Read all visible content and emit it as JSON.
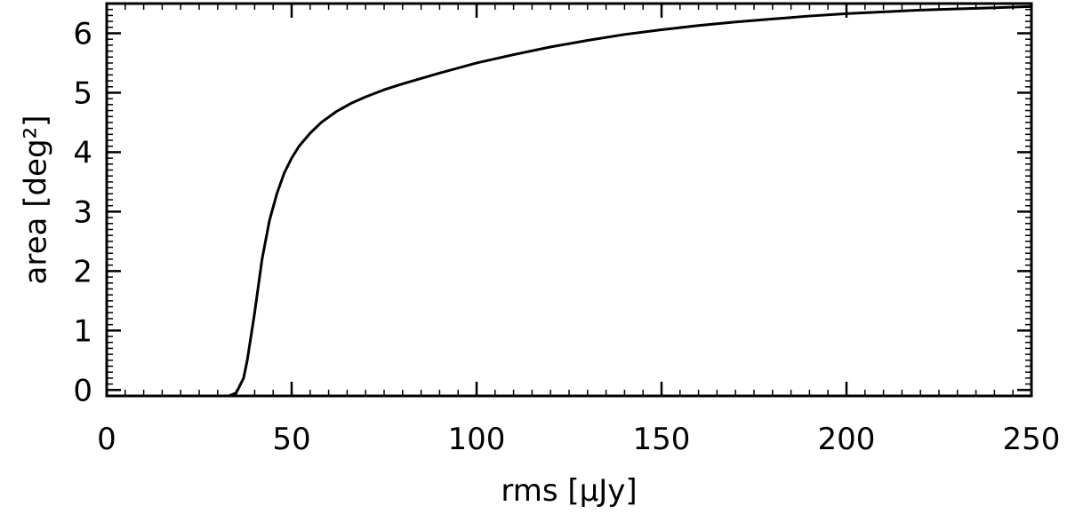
{
  "chart_data": {
    "type": "line",
    "title": "",
    "xlabel": "rms [μJy]",
    "ylabel": "area [deg²]",
    "xlim": [
      0,
      250
    ],
    "ylim": [
      -0.1,
      6.5
    ],
    "xticks": [
      0,
      50,
      100,
      150,
      200,
      250
    ],
    "xtick_labels": [
      "0",
      "50",
      "100",
      "150",
      "200",
      "250"
    ],
    "yticks": [
      0,
      1,
      2,
      3,
      4,
      5,
      6
    ],
    "ytick_labels": [
      "0",
      "1",
      "2",
      "3",
      "4",
      "5",
      "6"
    ],
    "x_minor_step": 5,
    "y_minor_step": 0.1,
    "grid": false,
    "line_color": "#000000",
    "series": [
      {
        "x": [
          0,
          30,
          33,
          35,
          37,
          38,
          40,
          42,
          44,
          46,
          48,
          50,
          52,
          55,
          58,
          62,
          66,
          70,
          75,
          80,
          90,
          100,
          110,
          120,
          130,
          140,
          150,
          160,
          170,
          180,
          190,
          200,
          210,
          220,
          230,
          240,
          250
        ],
        "y": [
          -0.1,
          -0.1,
          -0.1,
          -0.05,
          0.2,
          0.5,
          1.3,
          2.2,
          2.85,
          3.3,
          3.65,
          3.9,
          4.1,
          4.32,
          4.5,
          4.68,
          4.82,
          4.93,
          5.05,
          5.15,
          5.33,
          5.5,
          5.64,
          5.77,
          5.88,
          5.98,
          6.06,
          6.13,
          6.19,
          6.24,
          6.29,
          6.33,
          6.36,
          6.39,
          6.41,
          6.43,
          6.45
        ]
      }
    ]
  }
}
